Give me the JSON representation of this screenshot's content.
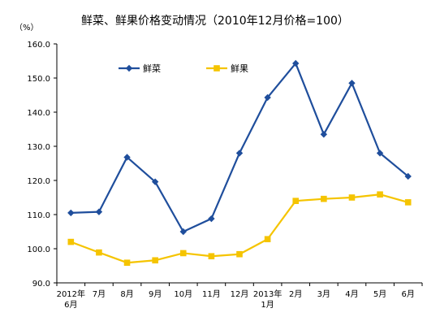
{
  "chart_data": {
    "type": "line",
    "title": "鲜菜、鲜果价格变动情况（2010年12月价格=100）",
    "unit": "（%）",
    "categories": [
      [
        "2012年",
        "6月"
      ],
      [
        "7月"
      ],
      [
        "8月"
      ],
      [
        "9月"
      ],
      [
        "10月"
      ],
      [
        "11月"
      ],
      [
        "12月"
      ],
      [
        "2013年",
        "1月"
      ],
      [
        "2月"
      ],
      [
        "3月"
      ],
      [
        "4月"
      ],
      [
        "5月"
      ],
      [
        "6月"
      ]
    ],
    "ylim": [
      90,
      160
    ],
    "yticks": [
      "90.0",
      "100.0",
      "110.0",
      "120.0",
      "130.0",
      "140.0",
      "150.0",
      "160.0"
    ],
    "grid": false,
    "legend_position": "top-left",
    "series": [
      {
        "name": "鲜菜",
        "color": "#1f4e9c",
        "marker": "diamond",
        "values": [
          110.5,
          110.8,
          126.8,
          119.6,
          105.0,
          108.8,
          128.0,
          144.3,
          154.3,
          133.5,
          148.5,
          128.0,
          121.2
        ]
      },
      {
        "name": "鲜果",
        "color": "#f5c400",
        "marker": "square",
        "values": [
          102.0,
          98.9,
          95.9,
          96.6,
          98.7,
          97.8,
          98.4,
          102.8,
          114.0,
          114.6,
          115.0,
          115.9,
          113.6
        ]
      }
    ]
  }
}
